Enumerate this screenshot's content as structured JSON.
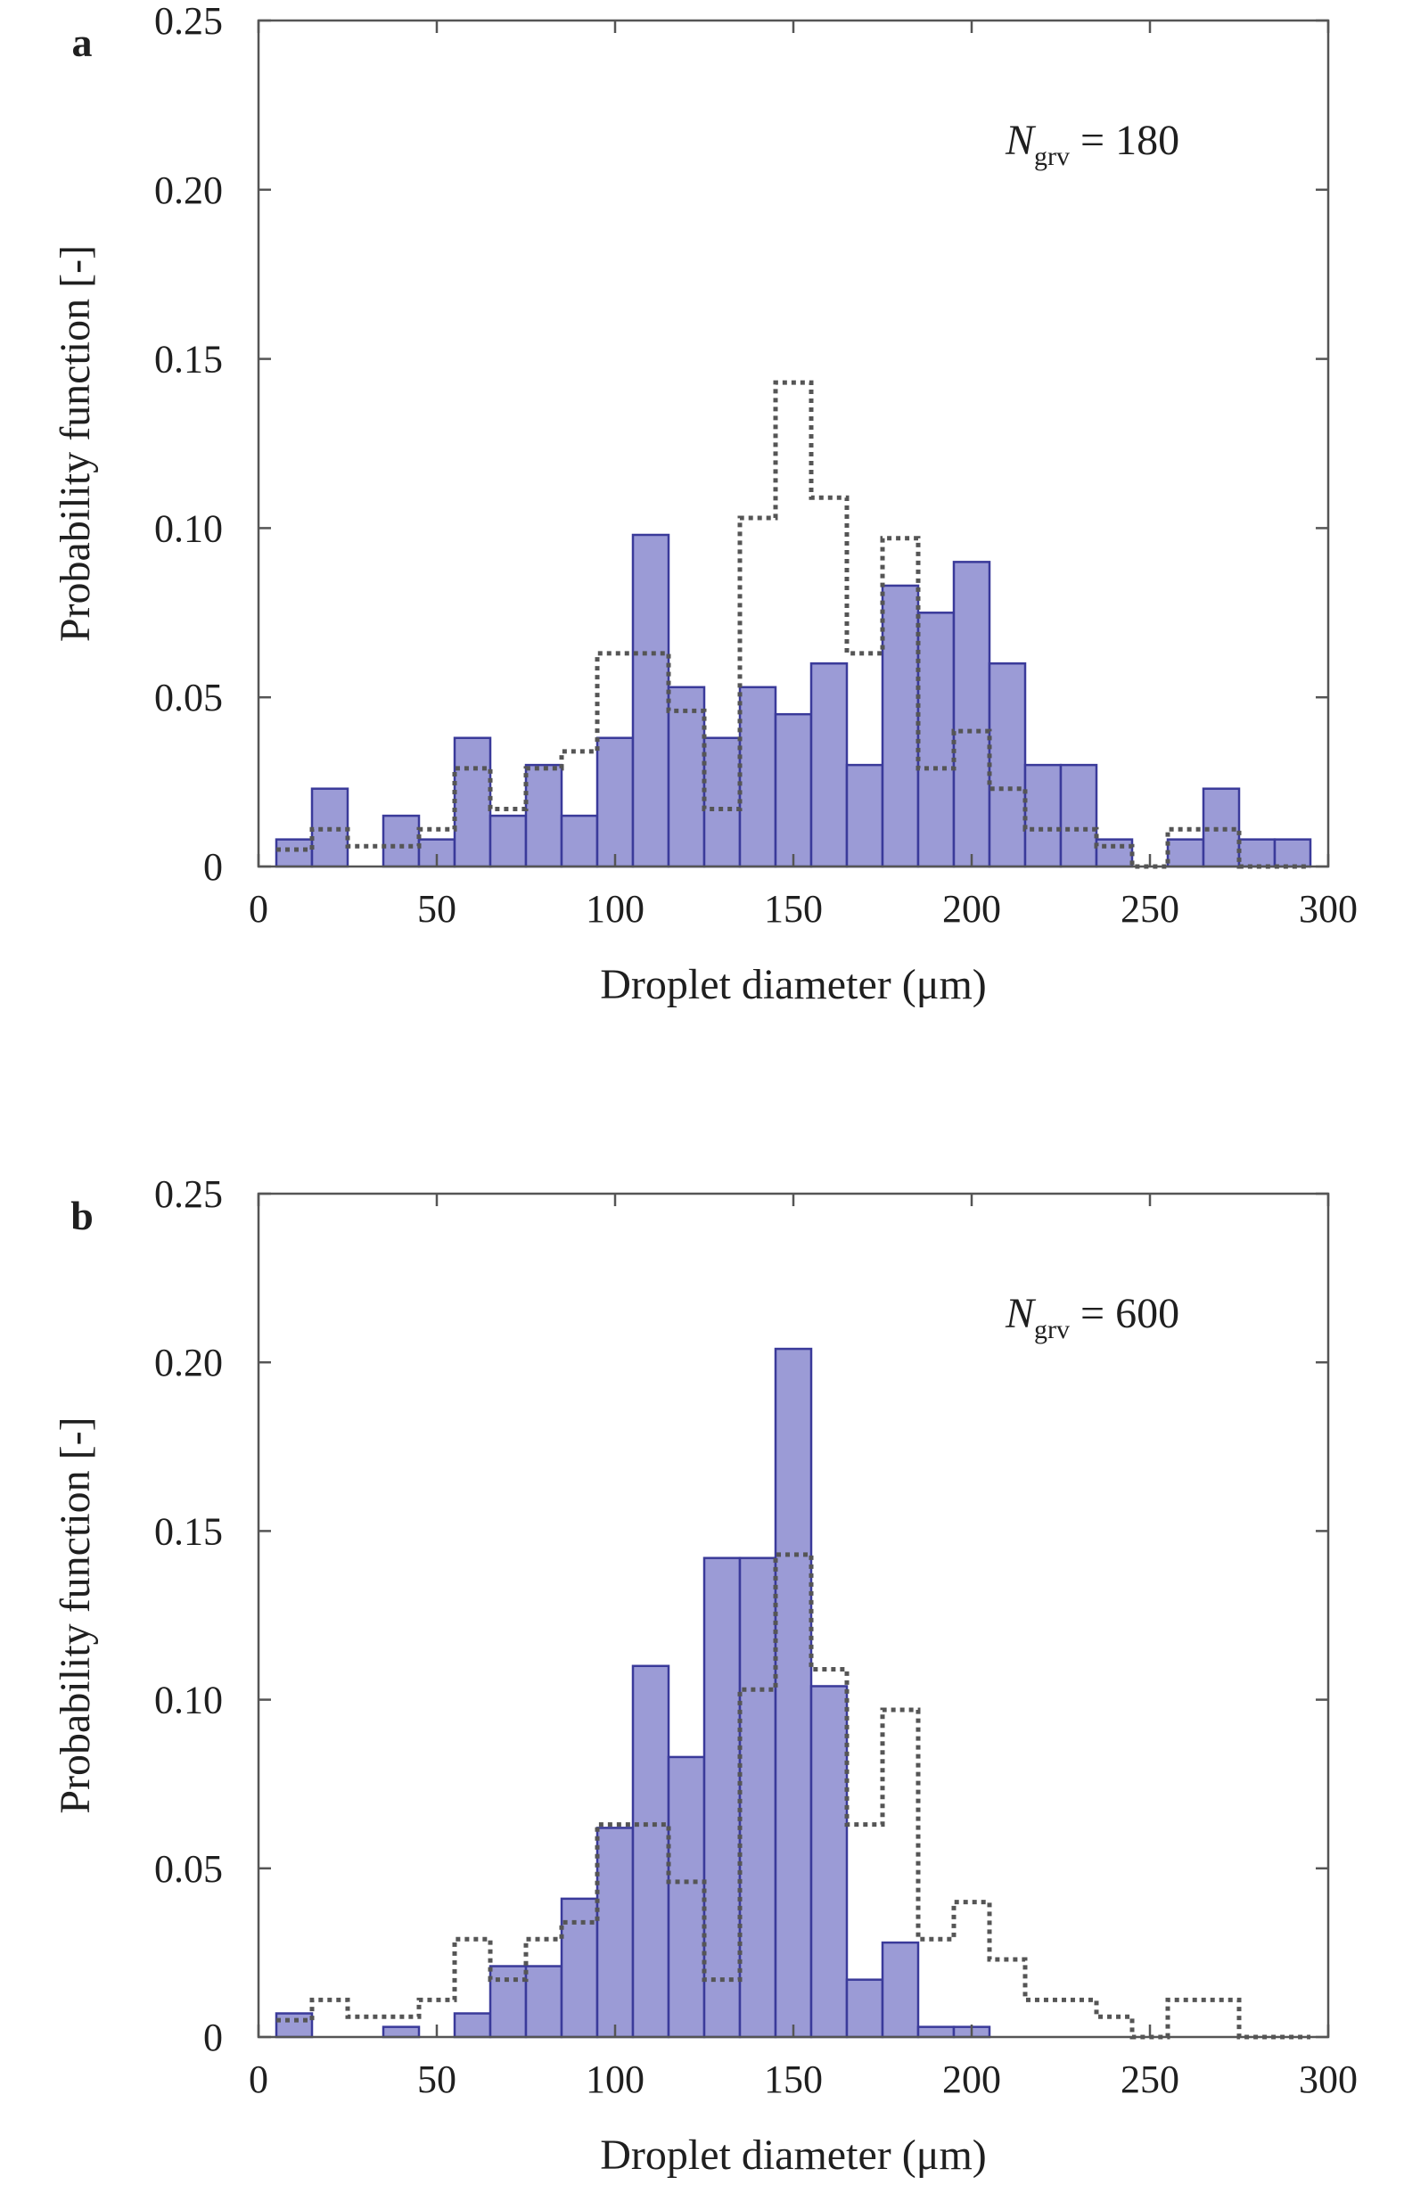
{
  "chart_data": [
    {
      "type": "bar",
      "panel_label": "a",
      "annotation": {
        "symbol": "N",
        "subscript": "grv",
        "rest": " = 180"
      },
      "xlabel": "Droplet diameter (μm)",
      "ylabel": "Probability function [-]",
      "xlim": [
        0,
        300
      ],
      "ylim": [
        0,
        0.25
      ],
      "x_ticks": [
        "0",
        "50",
        "100",
        "150",
        "200",
        "250",
        "300"
      ],
      "y_ticks": [
        "0",
        "0.05",
        "0.10",
        "0.15",
        "0.20",
        "0.25"
      ],
      "bin_width": 10,
      "bin_centers": [
        10,
        20,
        30,
        40,
        50,
        60,
        70,
        80,
        90,
        100,
        110,
        120,
        130,
        140,
        150,
        160,
        170,
        180,
        190,
        200,
        210,
        220,
        230,
        240,
        250,
        260,
        270,
        280,
        290
      ],
      "values": [
        0.008,
        0.023,
        0,
        0.015,
        0.008,
        0.038,
        0.015,
        0.03,
        0.015,
        0.038,
        0.098,
        0.053,
        0.038,
        0.053,
        0.045,
        0.06,
        0.03,
        0.083,
        0.075,
        0.09,
        0.06,
        0.03,
        0.03,
        0.008,
        0,
        0.008,
        0.023,
        0.008,
        0.008
      ],
      "reference_step": {
        "edges": [
          5,
          15,
          25,
          35,
          45,
          55,
          65,
          75,
          85,
          95,
          105,
          115,
          125,
          135,
          145,
          155,
          165,
          175,
          185,
          195,
          205,
          215,
          225,
          235,
          245,
          255,
          265,
          275,
          285,
          295
        ],
        "values": [
          0.005,
          0.011,
          0.006,
          0.006,
          0.011,
          0.029,
          0.017,
          0.029,
          0.034,
          0.063,
          0.063,
          0.046,
          0.017,
          0.103,
          0.143,
          0.109,
          0.063,
          0.097,
          0.029,
          0.04,
          0.023,
          0.011,
          0.011,
          0.006,
          0,
          0.011,
          0.011,
          0,
          0
        ]
      }
    },
    {
      "type": "bar",
      "panel_label": "b",
      "annotation": {
        "symbol": "N",
        "subscript": "grv",
        "rest": " = 600"
      },
      "xlabel": "Droplet diameter (μm)",
      "ylabel": "Probability function [-]",
      "xlim": [
        0,
        300
      ],
      "ylim": [
        0,
        0.25
      ],
      "x_ticks": [
        "0",
        "50",
        "100",
        "150",
        "200",
        "250",
        "300"
      ],
      "y_ticks": [
        "0",
        "0.05",
        "0.10",
        "0.15",
        "0.20",
        "0.25"
      ],
      "bin_width": 10,
      "bin_centers": [
        10,
        20,
        30,
        40,
        50,
        60,
        70,
        80,
        90,
        100,
        110,
        120,
        130,
        140,
        150,
        160,
        170,
        180,
        190,
        200
      ],
      "values": [
        0.007,
        0,
        0,
        0.003,
        0,
        0.007,
        0.021,
        0.021,
        0.041,
        0.062,
        0.11,
        0.083,
        0.142,
        0.142,
        0.204,
        0.104,
        0.017,
        0.028,
        0.003,
        0.003
      ],
      "reference_step": {
        "edges": [
          5,
          15,
          25,
          35,
          45,
          55,
          65,
          75,
          85,
          95,
          105,
          115,
          125,
          135,
          145,
          155,
          165,
          175,
          185,
          195,
          205,
          215,
          225,
          235,
          245,
          255,
          265,
          275,
          285,
          295
        ],
        "values": [
          0.005,
          0.011,
          0.006,
          0.006,
          0.011,
          0.029,
          0.017,
          0.029,
          0.034,
          0.063,
          0.063,
          0.046,
          0.017,
          0.103,
          0.143,
          0.109,
          0.063,
          0.097,
          0.029,
          0.04,
          0.023,
          0.011,
          0.011,
          0.006,
          0,
          0.011,
          0.011,
          0,
          0
        ]
      }
    }
  ]
}
